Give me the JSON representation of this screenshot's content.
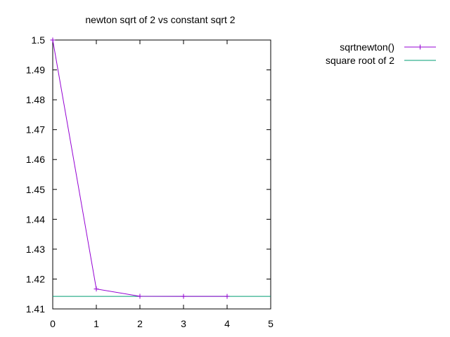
{
  "chart_data": {
    "type": "line",
    "title": "newton sqrt of 2 vs constant sqrt 2",
    "xlabel": "",
    "ylabel": "",
    "xlim": [
      0,
      5
    ],
    "ylim": [
      1.41,
      1.5
    ],
    "x_ticks": [
      0,
      1,
      2,
      3,
      4,
      5
    ],
    "x_tick_labels": [
      "0",
      "1",
      "2",
      "3",
      "4",
      "5"
    ],
    "y_ticks": [
      1.41,
      1.42,
      1.43,
      1.44,
      1.45,
      1.46,
      1.47,
      1.48,
      1.49,
      1.5
    ],
    "y_tick_labels": [
      "1.41",
      "1.42",
      "1.43",
      "1.44",
      "1.45",
      "1.46",
      "1.47",
      "1.48",
      "1.49",
      "1.5"
    ],
    "grid": false,
    "legend_position": "top-right outside",
    "series": [
      {
        "name": "sqrtnewton()",
        "color": "#9400d3",
        "marker": "plus",
        "x": [
          0,
          1,
          2,
          3,
          4
        ],
        "y": [
          1.5,
          1.41667,
          1.41422,
          1.41421,
          1.41421
        ]
      },
      {
        "name": "square root of 2",
        "color": "#009e73",
        "marker": "none",
        "x": [
          0,
          5
        ],
        "y": [
          1.41421,
          1.41421
        ]
      }
    ]
  }
}
